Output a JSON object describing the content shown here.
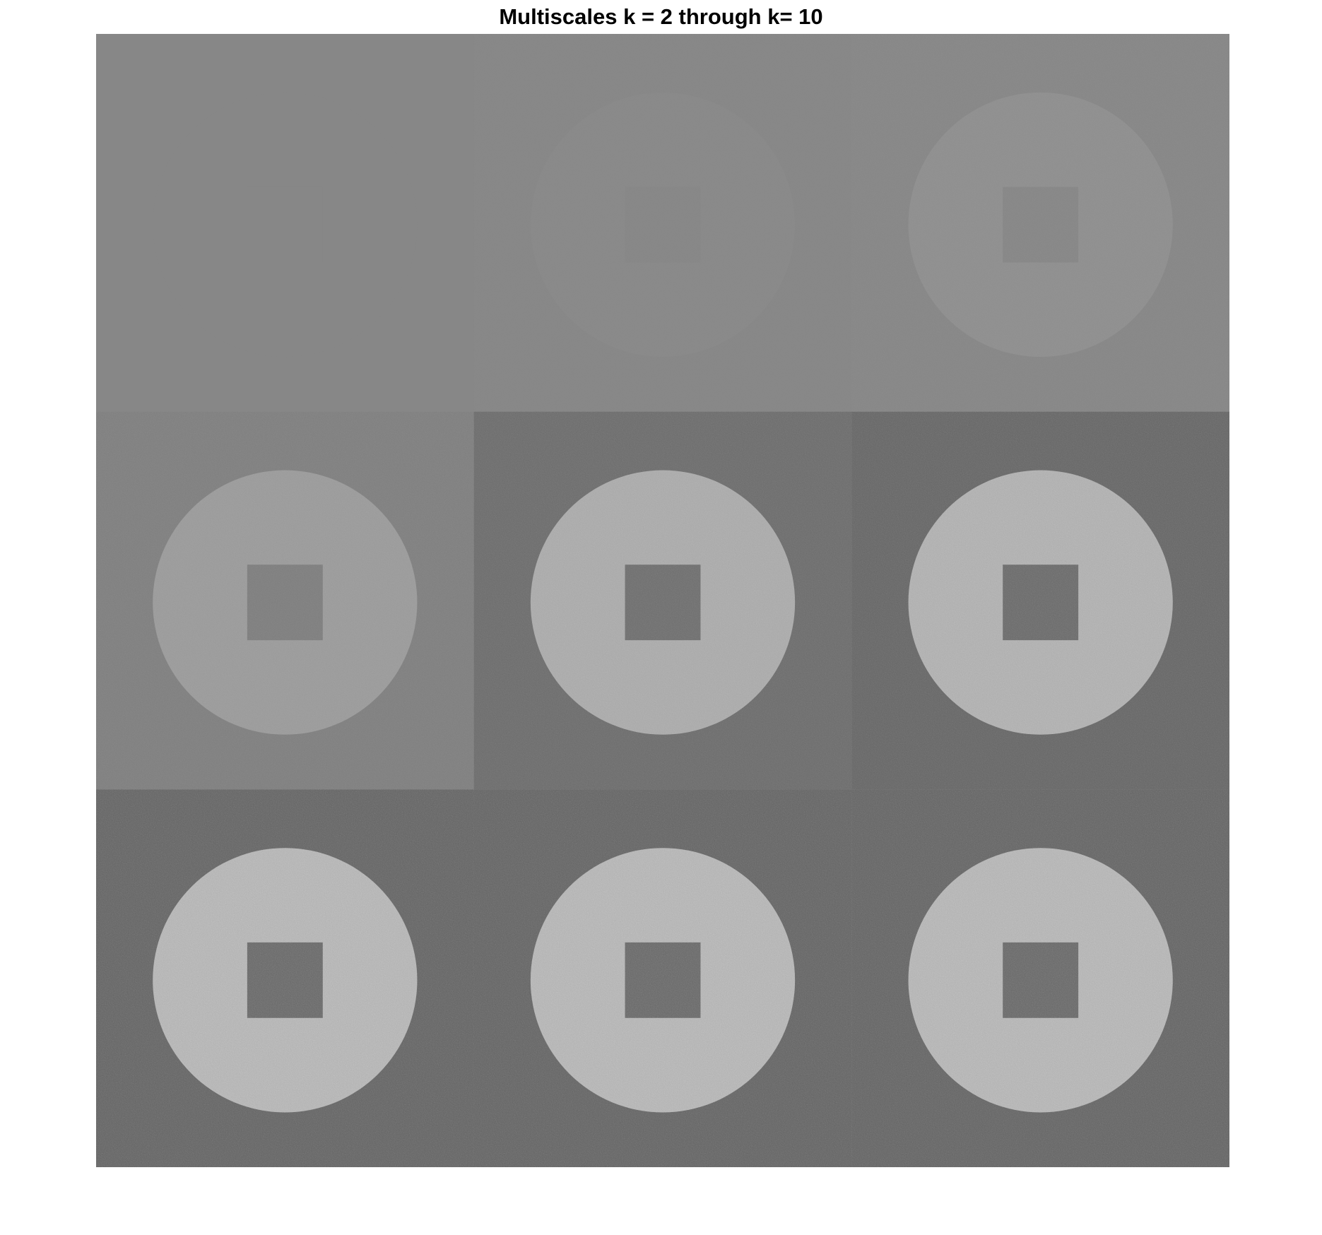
{
  "figure": {
    "title": "Multiscales k = 2 through k= 10"
  },
  "montage": {
    "rows": 3,
    "cols": 3,
    "panels": [
      {
        "k": 2,
        "background": "#878787",
        "disk": "#878787",
        "square": "#878787",
        "noise": 0.0
      },
      {
        "k": 3,
        "background": "#878787",
        "disk": "#898989",
        "square": "#878787",
        "noise": 0.01
      },
      {
        "k": 4,
        "background": "#878787",
        "disk": "#8f8f8f",
        "square": "#878787",
        "noise": 0.06
      },
      {
        "k": 5,
        "background": "#7f7f7f",
        "disk": "#9a9a9a",
        "square": "#7e7e7e",
        "noise": 0.14
      },
      {
        "k": 6,
        "background": "#6c6c6c",
        "disk": "#a8a8a8",
        "square": "#6e6e6e",
        "noise": 0.26
      },
      {
        "k": 7,
        "background": "#666666",
        "disk": "#adadad",
        "square": "#6a6a6a",
        "noise": 0.32
      },
      {
        "k": 8,
        "background": "#646464",
        "disk": "#b1b1b1",
        "square": "#686868",
        "noise": 0.4
      },
      {
        "k": 9,
        "background": "#646464",
        "disk": "#b1b1b1",
        "square": "#686868",
        "noise": 0.4
      },
      {
        "k": 10,
        "background": "#646464",
        "disk": "#b1b1b1",
        "square": "#686868",
        "noise": 0.4
      }
    ]
  }
}
